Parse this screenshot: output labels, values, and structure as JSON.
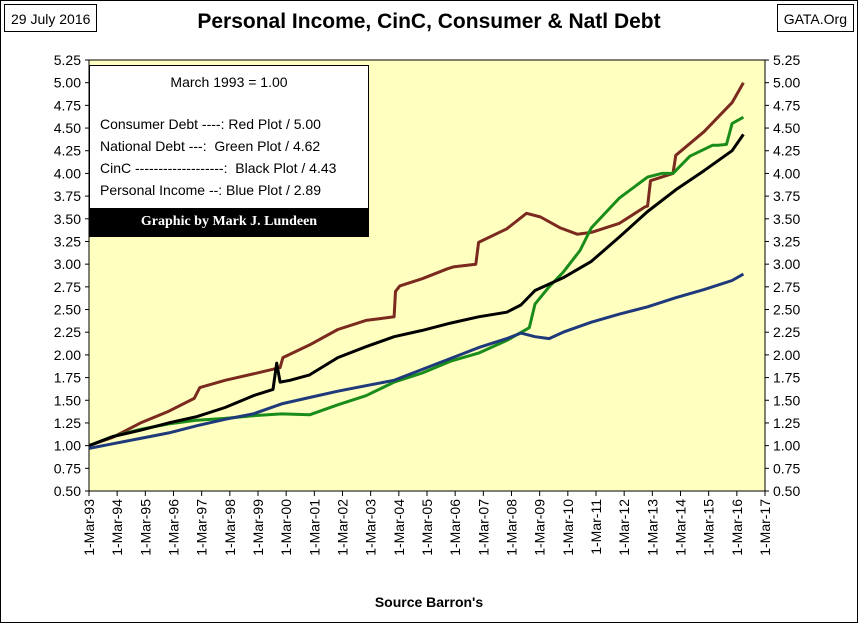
{
  "header": {
    "date": "29 July 2016",
    "source": "GATA.Org"
  },
  "legend": {
    "heading": "March 1993 = 1.00",
    "rows": [
      "Consumer Debt ----: Red Plot / 5.00",
      "National Debt ---:  Green Plot / 4.62",
      "CinC -------------------:  Black Plot / 4.43",
      "Personal Income --: Blue Plot / 2.89"
    ],
    "credit": "Graphic by Mark J. Lundeen"
  },
  "chart_data": {
    "type": "line",
    "title": "Personal Income, CinC, Consumer & Natl Debt",
    "xlabel": "Source Barron's",
    "ylabel": "",
    "ylim": [
      0.5,
      5.25
    ],
    "yticks": [
      "0.50",
      "0.75",
      "1.00",
      "1.25",
      "1.50",
      "1.75",
      "2.00",
      "2.25",
      "2.50",
      "2.75",
      "3.00",
      "3.25",
      "3.50",
      "3.75",
      "4.00",
      "4.25",
      "4.50",
      "4.75",
      "5.00",
      "5.25"
    ],
    "xticks": [
      "1-Mar-93",
      "1-Mar-94",
      "1-Mar-95",
      "1-Mar-96",
      "1-Mar-97",
      "1-Mar-98",
      "1-Mar-99",
      "1-Mar-00",
      "1-Mar-01",
      "1-Mar-02",
      "1-Mar-03",
      "1-Mar-04",
      "1-Mar-05",
      "1-Mar-06",
      "1-Mar-07",
      "1-Mar-08",
      "1-Mar-09",
      "1-Mar-10",
      "1-Mar-11",
      "1-Mar-12",
      "1-Mar-13",
      "1-Mar-14",
      "1-Mar-15",
      "1-Mar-16",
      "1-Mar-17"
    ],
    "grid": false,
    "series": [
      {
        "name": "Consumer Debt",
        "color": "#7a2a1f",
        "x": [
          1993.17,
          1994,
          1995,
          1996,
          1996.9,
          1997.1,
          1998,
          1999,
          1999.95,
          2000.05,
          2001,
          2002,
          2003,
          2003.5,
          2004,
          2004.05,
          2004.2,
          2005,
          2005.9,
          2006.1,
          2006.9,
          2007,
          2008,
          2008.7,
          2009.2,
          2009.9,
          2010.5,
          2011,
          2012,
          2012.9,
          2013.0,
          2013.1,
          2013.9,
          2014.0,
          2015,
          2016,
          2016.4
        ],
        "y": [
          1.0,
          1.09,
          1.25,
          1.38,
          1.52,
          1.64,
          1.72,
          1.79,
          1.86,
          1.97,
          2.11,
          2.28,
          2.38,
          2.4,
          2.42,
          2.7,
          2.76,
          2.84,
          2.95,
          2.97,
          3.0,
          3.24,
          3.39,
          3.56,
          3.52,
          3.4,
          3.33,
          3.35,
          3.45,
          3.63,
          3.64,
          3.92,
          4.0,
          4.2,
          4.46,
          4.78,
          5.0
        ]
      },
      {
        "name": "National Debt",
        "color": "#1a8c1a",
        "x": [
          1993.17,
          1994,
          1995,
          1996,
          1997,
          1998,
          1999,
          2000,
          2001,
          2002,
          2003,
          2004,
          2005,
          2006,
          2007,
          2008,
          2008.8,
          2009,
          2009.5,
          2010,
          2010.6,
          2011,
          2012,
          2013,
          2013.5,
          2013.9,
          2014.5,
          2015.3,
          2015.5,
          2015.8,
          2016,
          2016.4
        ],
        "y": [
          1.0,
          1.1,
          1.18,
          1.24,
          1.28,
          1.3,
          1.33,
          1.35,
          1.34,
          1.45,
          1.55,
          1.7,
          1.8,
          1.93,
          2.02,
          2.16,
          2.3,
          2.56,
          2.75,
          2.91,
          3.15,
          3.4,
          3.73,
          3.96,
          4.0,
          4.0,
          4.19,
          4.31,
          4.31,
          4.32,
          4.55,
          4.62
        ]
      },
      {
        "name": "CinC",
        "color": "#000000",
        "x": [
          1993.17,
          1994,
          1995,
          1996,
          1997,
          1998,
          1999,
          1999.7,
          1999.83,
          1999.95,
          2000.3,
          2001,
          2002,
          2003,
          2004,
          2005,
          2006,
          2007,
          2008,
          2008.5,
          2009,
          2010,
          2011,
          2012,
          2013,
          2014,
          2015,
          2016,
          2016.4
        ],
        "y": [
          1.0,
          1.1,
          1.17,
          1.25,
          1.32,
          1.42,
          1.55,
          1.62,
          1.91,
          1.7,
          1.72,
          1.78,
          1.97,
          2.09,
          2.2,
          2.27,
          2.35,
          2.42,
          2.47,
          2.55,
          2.71,
          2.85,
          3.03,
          3.3,
          3.58,
          3.82,
          4.03,
          4.25,
          4.43
        ]
      },
      {
        "name": "Personal Income",
        "color": "#1f3a7a",
        "x": [
          1993.17,
          1994,
          1995,
          1996,
          1997,
          1998,
          1999,
          2000,
          2001,
          2002,
          2003,
          2004,
          2005,
          2006,
          2007,
          2008,
          2008.5,
          2009,
          2009.5,
          2010,
          2011,
          2012,
          2013,
          2014,
          2015,
          2016,
          2016.4
        ],
        "y": [
          0.97,
          1.02,
          1.08,
          1.14,
          1.22,
          1.29,
          1.35,
          1.46,
          1.53,
          1.6,
          1.66,
          1.72,
          1.84,
          1.96,
          2.08,
          2.18,
          2.24,
          2.2,
          2.18,
          2.25,
          2.36,
          2.45,
          2.53,
          2.63,
          2.72,
          2.82,
          2.89
        ]
      }
    ]
  }
}
